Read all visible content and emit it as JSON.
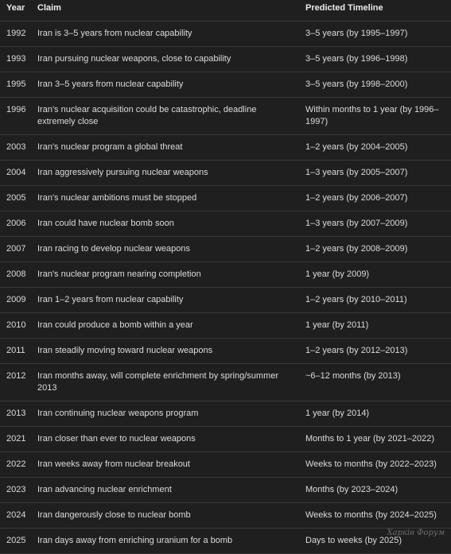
{
  "headers": {
    "year": "Year",
    "claim": "Claim",
    "timeline": "Predicted Timeline"
  },
  "rows": [
    {
      "year": "1992",
      "claim": "Iran is 3–5 years from nuclear capability",
      "timeline": "3–5 years (by 1995–1997)"
    },
    {
      "year": "1993",
      "claim": "Iran pursuing nuclear weapons, close to capability",
      "timeline": "3–5 years (by 1996–1998)"
    },
    {
      "year": "1995",
      "claim": "Iran 3–5 years from nuclear capability",
      "timeline": "3–5 years (by 1998–2000)"
    },
    {
      "year": "1996",
      "claim": "Iran's nuclear acquisition could be catastrophic, deadline extremely close",
      "timeline": "Within months to 1 year (by 1996–1997)"
    },
    {
      "year": "2003",
      "claim": "Iran's nuclear program a global threat",
      "timeline": "1–2 years (by 2004–2005)"
    },
    {
      "year": "2004",
      "claim": "Iran aggressively pursuing nuclear weapons",
      "timeline": "1–3 years (by 2005–2007)"
    },
    {
      "year": "2005",
      "claim": "Iran's nuclear ambitions must be stopped",
      "timeline": "1–2 years (by 2006–2007)"
    },
    {
      "year": "2006",
      "claim": "Iran could have nuclear bomb soon",
      "timeline": "1–3 years (by 2007–2009)"
    },
    {
      "year": "2007",
      "claim": "Iran racing to develop nuclear weapons",
      "timeline": "1–2 years (by 2008–2009)"
    },
    {
      "year": "2008",
      "claim": "Iran's nuclear program nearing completion",
      "timeline": "1 year (by 2009)"
    },
    {
      "year": "2009",
      "claim": "Iran 1–2 years from nuclear capability",
      "timeline": "1–2 years (by 2010–2011)"
    },
    {
      "year": "2010",
      "claim": "Iran could produce a bomb within a year",
      "timeline": "1 year (by 2011)"
    },
    {
      "year": "2011",
      "claim": "Iran steadily moving toward nuclear weapons",
      "timeline": "1–2 years (by 2012–2013)"
    },
    {
      "year": "2012",
      "claim": "Iran months away, will complete enrichment by spring/summer 2013",
      "timeline": "~6–12 months (by 2013)"
    },
    {
      "year": "2013",
      "claim": "Iran continuing nuclear weapons program",
      "timeline": "1 year (by 2014)"
    },
    {
      "year": "2021",
      "claim": "Iran closer than ever to nuclear weapons",
      "timeline": "Months to 1 year (by 2021–2022)"
    },
    {
      "year": "2022",
      "claim": "Iran weeks away from nuclear breakout",
      "timeline": "Weeks to months (by 2022–2023)"
    },
    {
      "year": "2023",
      "claim": "Iran advancing nuclear enrichment",
      "timeline": "Months (by 2023–2024)"
    },
    {
      "year": "2024",
      "claim": "Iran dangerously close to nuclear bomb",
      "timeline": "Weeks to months (by 2024–2025)"
    },
    {
      "year": "2025",
      "claim": "Iran days away from enriching uranium for a bomb",
      "timeline": "Days to weeks (by 2025)"
    }
  ],
  "watermark": "Харків Форум"
}
